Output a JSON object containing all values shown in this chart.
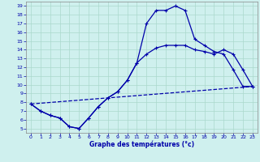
{
  "title": "Graphe des températures (°c)",
  "bg_color": "#cff0ee",
  "grid_color": "#aad8cc",
  "line_color": "#0000aa",
  "xlim": [
    -0.5,
    23.5
  ],
  "ylim": [
    4.5,
    19.5
  ],
  "xticks": [
    0,
    1,
    2,
    3,
    4,
    5,
    6,
    7,
    8,
    9,
    10,
    11,
    12,
    13,
    14,
    15,
    16,
    17,
    18,
    19,
    20,
    21,
    22,
    23
  ],
  "yticks": [
    5,
    6,
    7,
    8,
    9,
    10,
    11,
    12,
    13,
    14,
    15,
    16,
    17,
    18,
    19
  ],
  "line1_x": [
    0,
    1,
    2,
    3,
    4,
    5,
    6,
    7,
    8,
    9,
    10,
    11,
    12,
    13,
    14,
    15,
    16,
    17,
    18,
    19,
    20,
    21,
    22,
    23
  ],
  "line1_y": [
    7.8,
    7.0,
    6.5,
    6.2,
    5.2,
    5.0,
    6.2,
    7.5,
    8.5,
    9.2,
    10.5,
    12.5,
    17.0,
    18.5,
    18.5,
    19.0,
    18.5,
    15.2,
    14.5,
    13.8,
    13.5,
    11.7,
    9.8,
    9.8
  ],
  "line2_x": [
    0,
    1,
    2,
    3,
    4,
    5,
    6,
    7,
    8,
    9,
    10,
    11,
    12,
    13,
    14,
    15,
    16,
    17,
    18,
    19,
    20,
    21,
    22,
    23
  ],
  "line2_y": [
    7.8,
    7.0,
    6.5,
    6.2,
    5.2,
    5.0,
    6.2,
    7.5,
    8.5,
    9.2,
    10.5,
    12.5,
    13.5,
    14.2,
    14.5,
    14.5,
    14.5,
    14.0,
    13.8,
    13.5,
    14.0,
    13.5,
    11.7,
    9.8
  ],
  "line3_x": [
    0,
    23
  ],
  "line3_y": [
    7.8,
    9.8
  ]
}
